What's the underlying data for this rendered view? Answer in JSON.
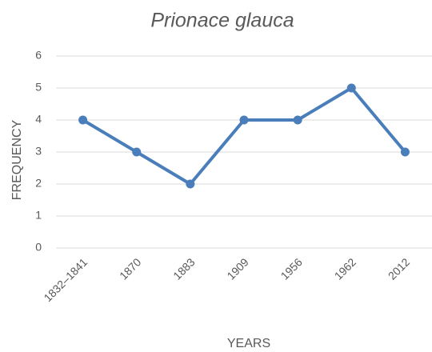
{
  "chart_data": {
    "type": "line",
    "title": "Prionace glauca",
    "x_label": "YEARS",
    "y_label": "FREQUENCY",
    "categories": [
      "1832–1841",
      "1870",
      "1883",
      "1909",
      "1956",
      "1962",
      "2012"
    ],
    "values": [
      4,
      3,
      2,
      4,
      4,
      5,
      3
    ],
    "color": "#4a7ebb",
    "ylim": [
      0,
      6
    ],
    "yticks": [
      0,
      1,
      2,
      3,
      4,
      5,
      6
    ],
    "grid": true
  }
}
